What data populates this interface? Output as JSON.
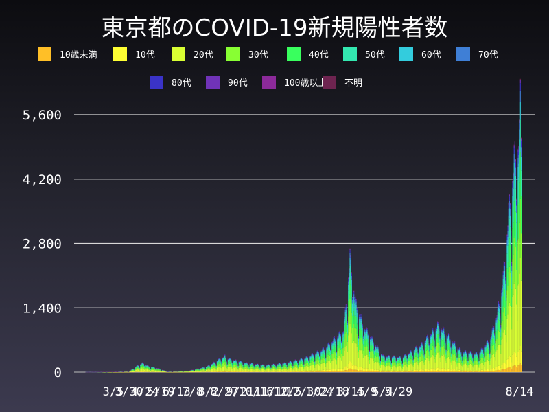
{
  "chart_data": {
    "type": "bar",
    "stacked": true,
    "title": "東京都のCOVID-19新規陽性者数",
    "xlabel": "",
    "ylabel": "",
    "ylim": [
      0,
      5600
    ],
    "yticks": [
      0,
      1400,
      2800,
      4200,
      5600
    ],
    "ytick_labels": [
      "0",
      "1,400",
      "2,800",
      "4,200",
      "5,600"
    ],
    "xtick_labels": [
      "3/5",
      "3/30",
      "4/24",
      "5/19",
      "6/13",
      "7/8",
      "8/2",
      "8/27",
      "9/21",
      "10/16",
      "11/10",
      "12/5",
      "12/30",
      "1/24",
      "2/18",
      "3/15",
      "4/9",
      "5/4",
      "5/29",
      "8/14"
    ],
    "grid": "horizontal",
    "legend_position": "top",
    "series": [
      {
        "name": "10歳未満",
        "color": "#ffbf27"
      },
      {
        "name": "10代",
        "color": "#ffff33"
      },
      {
        "name": "20代",
        "color": "#d9ff33"
      },
      {
        "name": "30代",
        "color": "#88ff33"
      },
      {
        "name": "40代",
        "color": "#39ff5e"
      },
      {
        "name": "50代",
        "color": "#33e8b0"
      },
      {
        "name": "60代",
        "color": "#33ccdd"
      },
      {
        "name": "70代",
        "color": "#3f7fd6"
      },
      {
        "name": "80代",
        "color": "#3a33c8"
      },
      {
        "name": "90代",
        "color": "#7033b8"
      },
      {
        "name": "100歳以上",
        "color": "#8c2a9a"
      },
      {
        "name": "不明",
        "color": "#6e2450"
      }
    ],
    "total_profile": {
      "note_free_envelope": true,
      "points": [
        [
          "1/24/2020",
          0
        ],
        [
          "3/5/2020",
          5
        ],
        [
          "3/30/2020",
          15
        ],
        [
          "4/10/2020",
          140
        ],
        [
          "4/17/2020",
          200
        ],
        [
          "4/24/2020",
          130
        ],
        [
          "5/5/2020",
          90
        ],
        [
          "5/19/2020",
          10
        ],
        [
          "6/13/2020",
          25
        ],
        [
          "7/8/2020",
          120
        ],
        [
          "7/31/2020",
          350
        ],
        [
          "8/2/2020",
          300
        ],
        [
          "8/27/2020",
          200
        ],
        [
          "9/21/2020",
          150
        ],
        [
          "10/16/2020",
          200
        ],
        [
          "11/10/2020",
          300
        ],
        [
          "12/5/2020",
          500
        ],
        [
          "12/30/2020",
          900
        ],
        [
          "1/7/2021",
          2450
        ],
        [
          "1/14/2021",
          1500
        ],
        [
          "1/24/2021",
          1000
        ],
        [
          "2/18/2021",
          350
        ],
        [
          "3/15/2021",
          320
        ],
        [
          "4/9/2021",
          600
        ],
        [
          "4/29/2021",
          1000
        ],
        [
          "5/4/2021",
          950
        ],
        [
          "5/29/2021",
          450
        ],
        [
          "6/20/2021",
          400
        ],
        [
          "7/5/2021",
          700
        ],
        [
          "7/15/2021",
          1300
        ],
        [
          "7/22/2021",
          2000
        ],
        [
          "7/28/2021",
          3200
        ],
        [
          "8/5/2021",
          4500
        ],
        [
          "8/12/2021",
          5000
        ],
        [
          "8/13/2021",
          5800
        ],
        [
          "8/14/2021",
          5100
        ]
      ]
    }
  }
}
